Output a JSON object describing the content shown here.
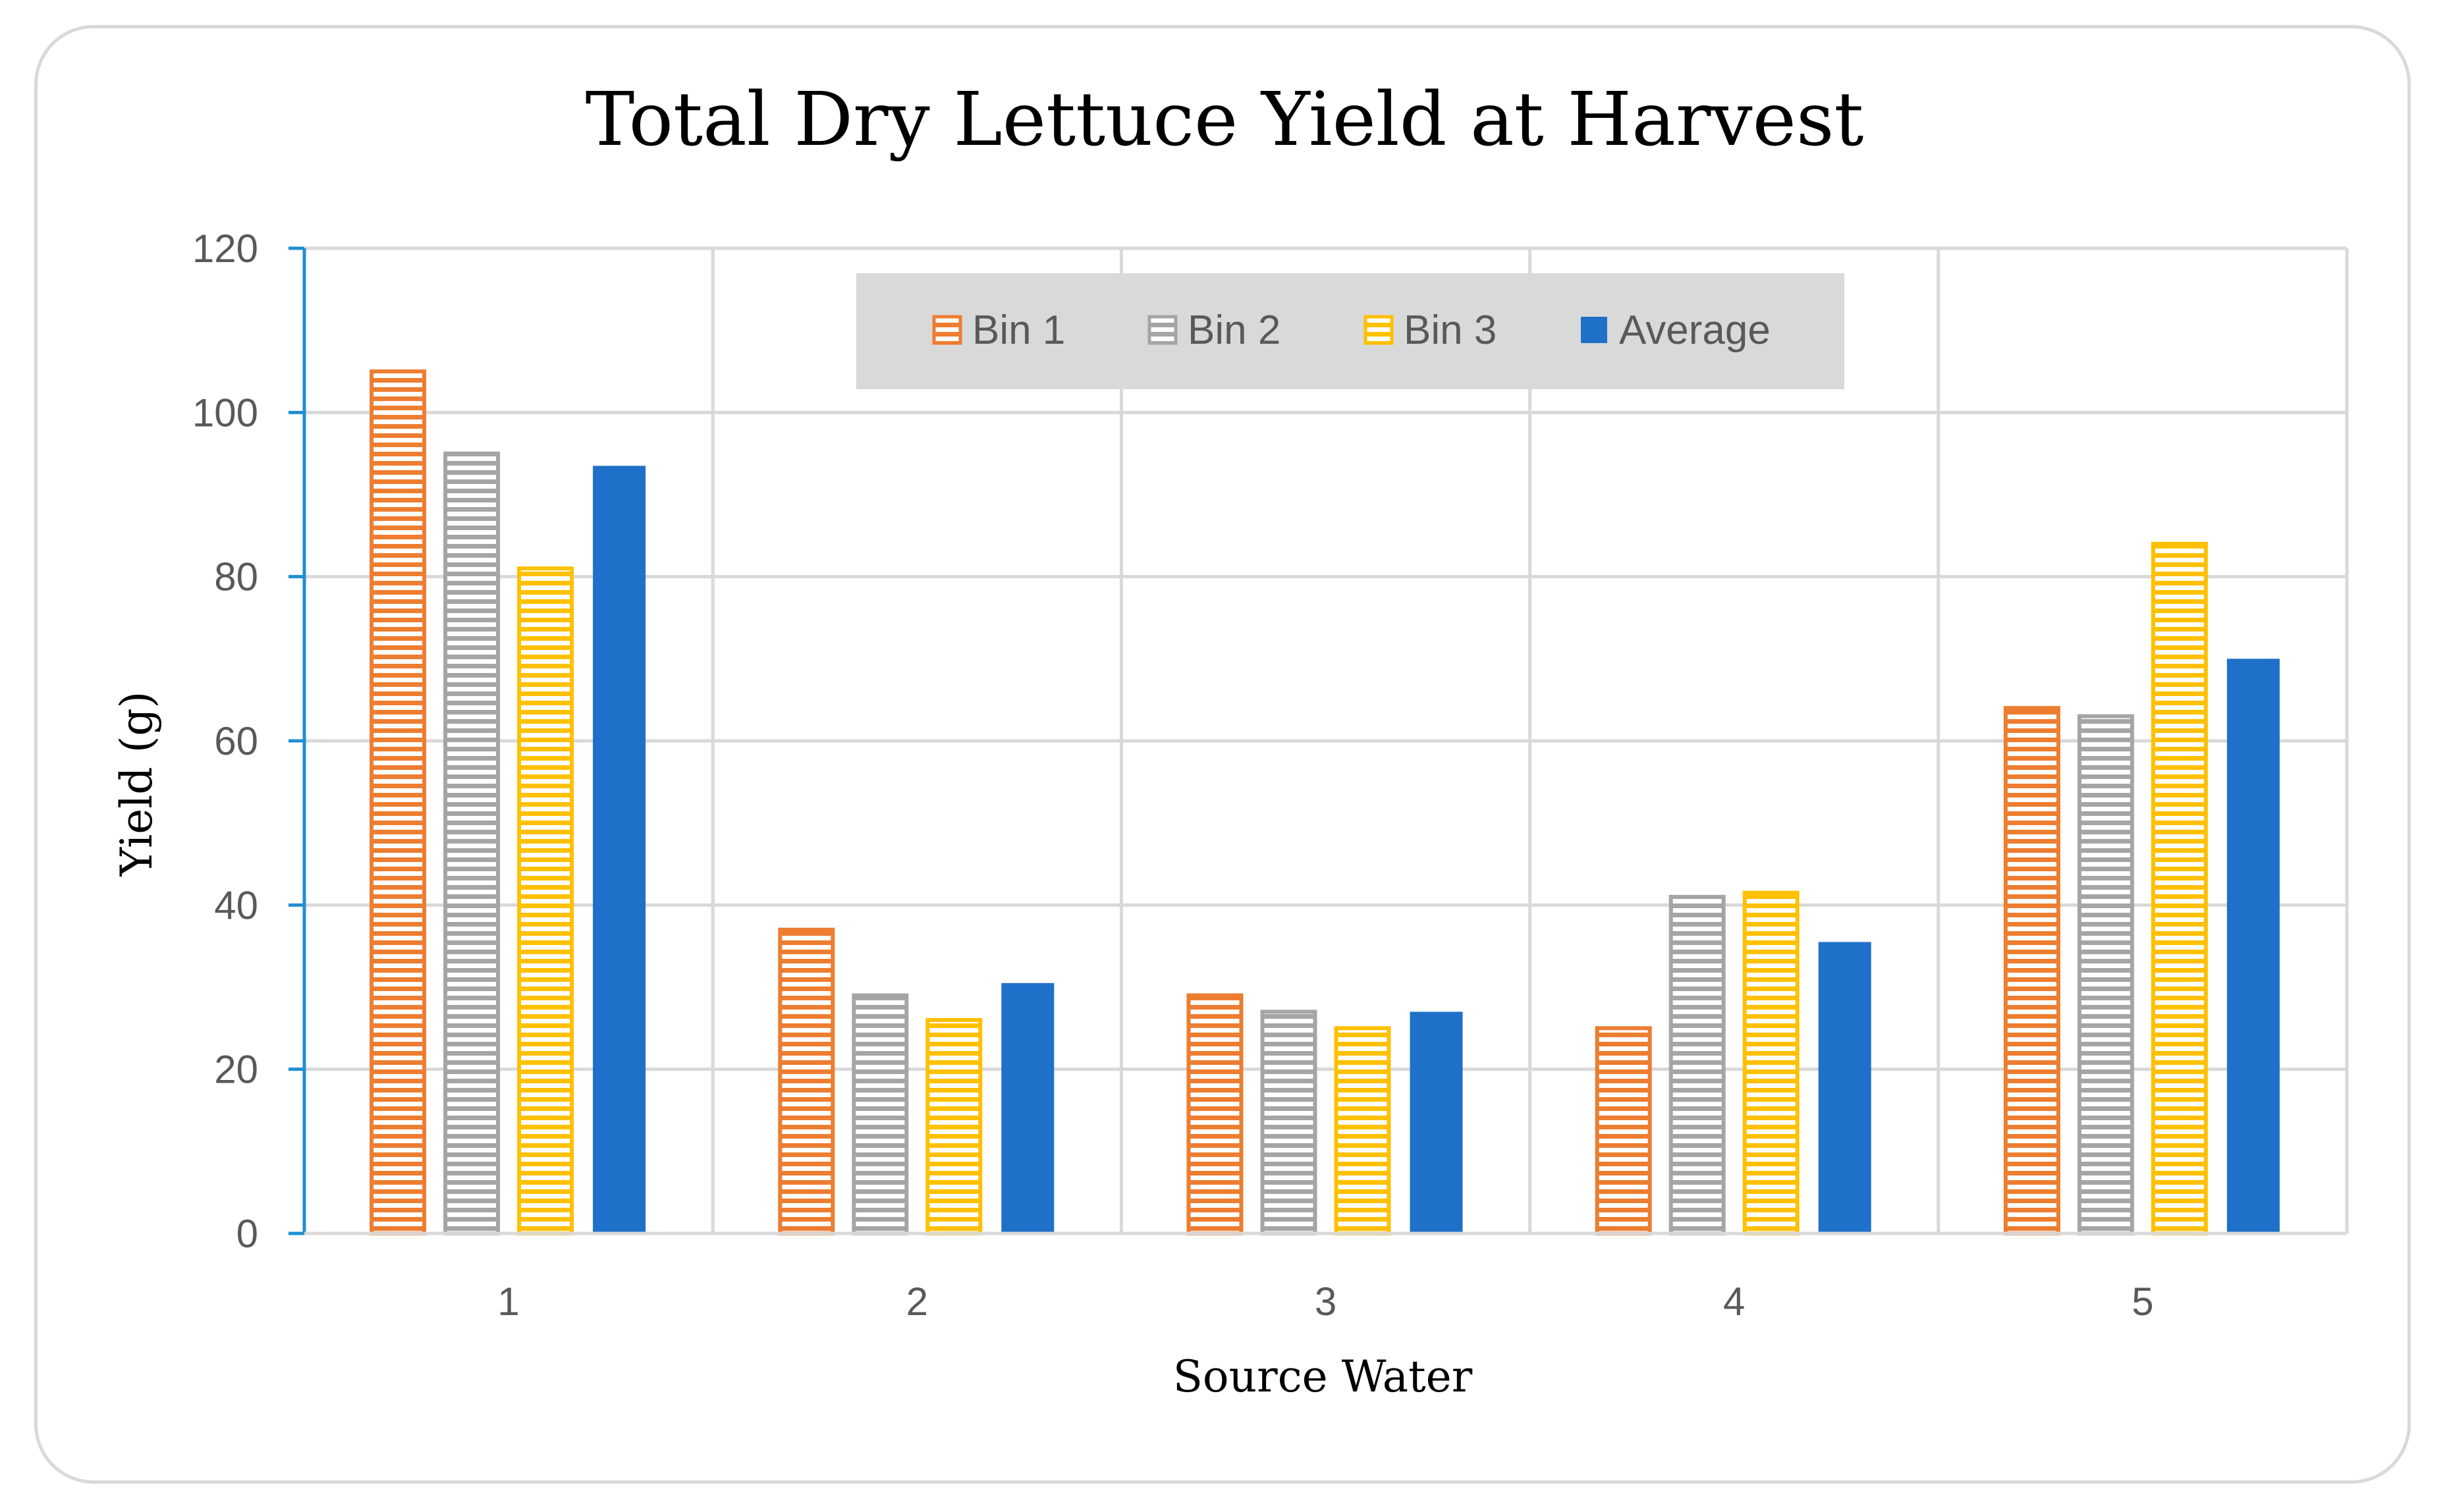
{
  "chart_data": {
    "type": "bar",
    "title": "Total Dry Lettuce Yield at Harvest",
    "xlabel": "Source Water",
    "ylabel": "Yield (g)",
    "categories": [
      "1",
      "2",
      "3",
      "4",
      "5"
    ],
    "ylim": [
      0,
      120
    ],
    "yticks": [
      0,
      20,
      40,
      60,
      80,
      100,
      120
    ],
    "grid": true,
    "legend_position": "top-center",
    "series": [
      {
        "name": "Bin 1",
        "color": "#ED7D31",
        "pattern": "horizontal-stripes",
        "values": [
          105,
          37,
          29,
          25,
          64
        ]
      },
      {
        "name": "Bin 2",
        "color": "#A5A5A5",
        "pattern": "horizontal-stripes",
        "values": [
          95,
          29,
          27,
          41,
          63
        ]
      },
      {
        "name": "Bin 3",
        "color": "#FFC000",
        "pattern": "horizontal-stripes",
        "values": [
          81,
          26,
          25,
          41.5,
          84
        ]
      },
      {
        "name": "Average",
        "color": "#1F70C8",
        "pattern": "solid",
        "values": [
          93.5,
          30.5,
          27,
          35.5,
          70
        ]
      }
    ]
  }
}
